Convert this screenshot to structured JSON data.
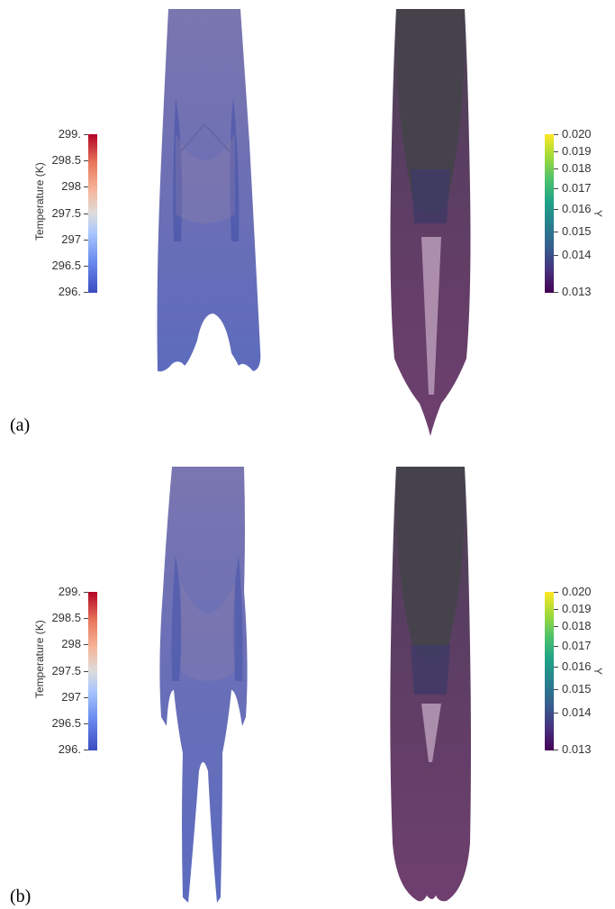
{
  "panels": [
    {
      "label": "(a)",
      "temperature_bar": {
        "title": "Temperature (K)",
        "ticks": [
          "299.",
          "298.5",
          "298",
          "297.5",
          "297",
          "296.5",
          "296."
        ]
      },
      "y_bar": {
        "title": "Y",
        "ticks": [
          "0.020",
          "0.019",
          "0.018",
          "0.017",
          "0.016",
          "0.015",
          "0.014",
          "0.013"
        ]
      }
    },
    {
      "label": "(b)",
      "temperature_bar": {
        "title": "Temperature (K)",
        "ticks": [
          "299.",
          "298.5",
          "298",
          "297.5",
          "297",
          "296.5",
          "296."
        ]
      },
      "y_bar": {
        "title": "Y",
        "ticks": [
          "0.020",
          "0.019",
          "0.018",
          "0.017",
          "0.016",
          "0.015",
          "0.014",
          "0.013"
        ]
      }
    }
  ],
  "colors": {
    "temperature_plume": "#6f74b8",
    "y_plume": "#6a3e6c",
    "y_plume_top": "#4a4550"
  }
}
